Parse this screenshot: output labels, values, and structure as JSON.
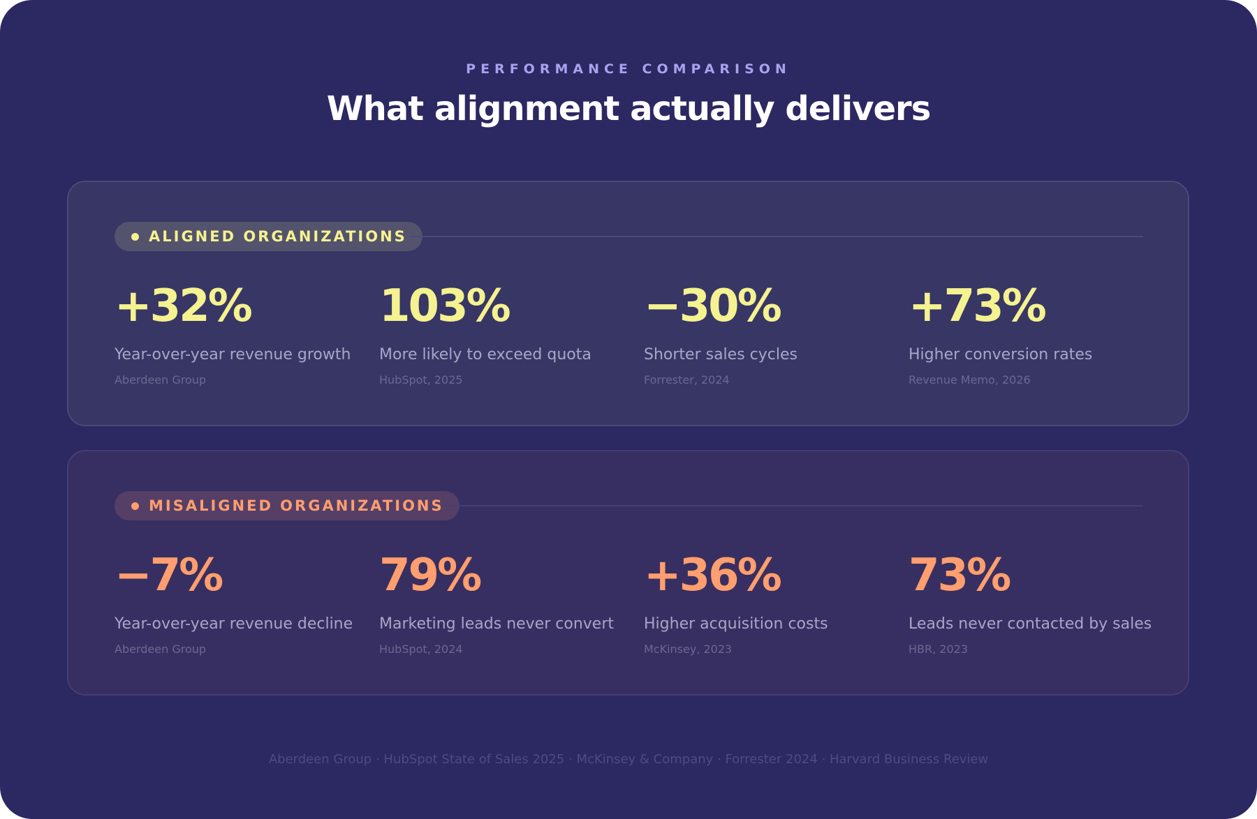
{
  "header": {
    "eyebrow": "PERFORMANCE COMPARISON",
    "title": "What alignment actually delivers"
  },
  "aligned": {
    "badge_label": "ALIGNED ORGANIZATIONS",
    "accent_color": "#f5f290",
    "stats": [
      {
        "value": "+32%",
        "label": "Year-over-year revenue growth",
        "source": "Aberdeen Group"
      },
      {
        "value": "103%",
        "label": "More likely to exceed quota",
        "source": "HubSpot, 2025"
      },
      {
        "value": "−30%",
        "label": "Shorter sales cycles",
        "source": "Forrester, 2024"
      },
      {
        "value": "+73%",
        "label": "Higher conversion rates",
        "source": "Revenue Memo, 2026"
      }
    ]
  },
  "misaligned": {
    "badge_label": "MISALIGNED ORGANIZATIONS",
    "accent_color": "#ff9e6e",
    "stats": [
      {
        "value": "−7%",
        "label": "Year-over-year revenue decline",
        "source": "Aberdeen Group"
      },
      {
        "value": "79%",
        "label": "Marketing leads never convert",
        "source": "HubSpot, 2024"
      },
      {
        "value": "+36%",
        "label": "Higher acquisition costs",
        "source": "McKinsey, 2023"
      },
      {
        "value": "73%",
        "label": "Leads never contacted by sales",
        "source": "HBR, 2023"
      }
    ]
  },
  "footer": {
    "sources": "Aberdeen Group · HubSpot State of Sales 2025 · McKinsey & Company · Forrester 2024 · Harvard Business Review"
  }
}
